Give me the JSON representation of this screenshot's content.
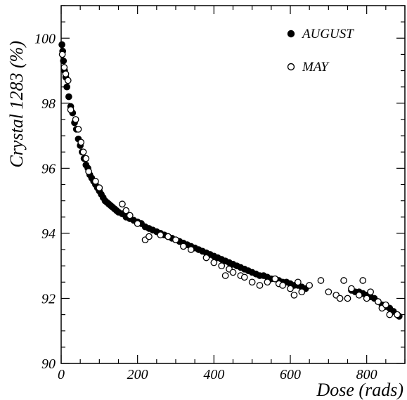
{
  "chart_data": {
    "type": "scatter",
    "title": "",
    "xlabel": "Dose (rads)",
    "ylabel": "Crystal 1283 (%)",
    "xlim": [
      0,
      900
    ],
    "ylim": [
      90,
      101
    ],
    "x_ticks": [
      0,
      200,
      400,
      600,
      800
    ],
    "y_ticks": [
      90,
      92,
      94,
      96,
      98,
      100
    ],
    "x_tick_labels": [
      "0",
      "200",
      "400",
      "600",
      "800"
    ],
    "y_tick_labels": [
      "90",
      "92",
      "94",
      "96",
      "98",
      "100"
    ],
    "grid": false,
    "legend_position": "top-right",
    "series": [
      {
        "name": "AUGUST",
        "marker": "filled-circle",
        "color": "#000000",
        "points": [
          [
            2,
            99.8
          ],
          [
            4,
            99.6
          ],
          [
            6,
            99.3
          ],
          [
            9,
            99.0
          ],
          [
            12,
            98.8
          ],
          [
            15,
            98.5
          ],
          [
            20,
            98.2
          ],
          [
            25,
            97.9
          ],
          [
            30,
            97.7
          ],
          [
            35,
            97.4
          ],
          [
            40,
            97.2
          ],
          [
            45,
            96.9
          ],
          [
            50,
            96.7
          ],
          [
            55,
            96.5
          ],
          [
            60,
            96.3
          ],
          [
            65,
            96.1
          ],
          [
            70,
            96.0
          ],
          [
            75,
            95.8
          ],
          [
            80,
            95.7
          ],
          [
            85,
            95.6
          ],
          [
            90,
            95.5
          ],
          [
            95,
            95.4
          ],
          [
            100,
            95.3
          ],
          [
            105,
            95.2
          ],
          [
            110,
            95.1
          ],
          [
            115,
            95.0
          ],
          [
            120,
            94.95
          ],
          [
            125,
            94.9
          ],
          [
            130,
            94.85
          ],
          [
            135,
            94.8
          ],
          [
            140,
            94.75
          ],
          [
            145,
            94.7
          ],
          [
            150,
            94.65
          ],
          [
            160,
            94.6
          ],
          [
            170,
            94.5
          ],
          [
            180,
            94.45
          ],
          [
            190,
            94.4
          ],
          [
            200,
            94.35
          ],
          [
            210,
            94.3
          ],
          [
            220,
            94.2
          ],
          [
            230,
            94.15
          ],
          [
            240,
            94.1
          ],
          [
            250,
            94.05
          ],
          [
            260,
            94.0
          ],
          [
            270,
            93.95
          ],
          [
            280,
            93.9
          ],
          [
            290,
            93.85
          ],
          [
            300,
            93.8
          ],
          [
            310,
            93.75
          ],
          [
            320,
            93.7
          ],
          [
            330,
            93.65
          ],
          [
            340,
            93.6
          ],
          [
            350,
            93.55
          ],
          [
            360,
            93.5
          ],
          [
            370,
            93.45
          ],
          [
            380,
            93.4
          ],
          [
            390,
            93.35
          ],
          [
            400,
            93.3
          ],
          [
            410,
            93.25
          ],
          [
            420,
            93.2
          ],
          [
            430,
            93.15
          ],
          [
            440,
            93.1
          ],
          [
            450,
            93.05
          ],
          [
            460,
            93.0
          ],
          [
            470,
            92.95
          ],
          [
            480,
            92.9
          ],
          [
            490,
            92.85
          ],
          [
            500,
            92.8
          ],
          [
            510,
            92.75
          ],
          [
            520,
            92.7
          ],
          [
            530,
            92.7
          ],
          [
            540,
            92.65
          ],
          [
            550,
            92.6
          ],
          [
            560,
            92.6
          ],
          [
            570,
            92.55
          ],
          [
            580,
            92.5
          ],
          [
            590,
            92.5
          ],
          [
            600,
            92.45
          ],
          [
            610,
            92.4
          ],
          [
            620,
            92.4
          ],
          [
            630,
            92.35
          ],
          [
            640,
            92.3
          ],
          [
            760,
            92.25
          ],
          [
            770,
            92.2
          ],
          [
            780,
            92.2
          ],
          [
            790,
            92.15
          ],
          [
            800,
            92.1
          ],
          [
            810,
            92.05
          ],
          [
            820,
            92.0
          ],
          [
            830,
            91.9
          ],
          [
            840,
            91.8
          ],
          [
            850,
            91.75
          ],
          [
            860,
            91.7
          ],
          [
            870,
            91.6
          ],
          [
            880,
            91.5
          ],
          [
            885,
            91.45
          ]
        ]
      },
      {
        "name": "MAY",
        "marker": "open-circle",
        "color": "#000000",
        "points": [
          [
            3,
            99.5
          ],
          [
            8,
            99.1
          ],
          [
            12,
            98.9
          ],
          [
            18,
            98.7
          ],
          [
            25,
            97.8
          ],
          [
            38,
            97.5
          ],
          [
            45,
            97.2
          ],
          [
            52,
            96.8
          ],
          [
            58,
            96.5
          ],
          [
            65,
            96.3
          ],
          [
            72,
            95.9
          ],
          [
            90,
            95.6
          ],
          [
            100,
            95.4
          ],
          [
            160,
            94.9
          ],
          [
            170,
            94.7
          ],
          [
            180,
            94.55
          ],
          [
            200,
            94.3
          ],
          [
            220,
            93.8
          ],
          [
            230,
            93.9
          ],
          [
            260,
            93.95
          ],
          [
            280,
            93.9
          ],
          [
            300,
            93.8
          ],
          [
            320,
            93.6
          ],
          [
            340,
            93.5
          ],
          [
            380,
            93.25
          ],
          [
            400,
            93.1
          ],
          [
            420,
            93.0
          ],
          [
            430,
            92.7
          ],
          [
            440,
            92.9
          ],
          [
            450,
            92.8
          ],
          [
            470,
            92.7
          ],
          [
            480,
            92.65
          ],
          [
            500,
            92.5
          ],
          [
            520,
            92.4
          ],
          [
            540,
            92.5
          ],
          [
            560,
            92.6
          ],
          [
            570,
            92.45
          ],
          [
            580,
            92.4
          ],
          [
            600,
            92.3
          ],
          [
            610,
            92.1
          ],
          [
            620,
            92.5
          ],
          [
            630,
            92.2
          ],
          [
            650,
            92.4
          ],
          [
            680,
            92.55
          ],
          [
            700,
            92.2
          ],
          [
            720,
            92.1
          ],
          [
            730,
            92.0
          ],
          [
            740,
            92.55
          ],
          [
            750,
            92.0
          ],
          [
            760,
            92.3
          ],
          [
            780,
            92.1
          ],
          [
            790,
            92.55
          ],
          [
            800,
            92.0
          ],
          [
            810,
            92.2
          ],
          [
            830,
            91.9
          ],
          [
            840,
            91.7
          ],
          [
            850,
            91.8
          ],
          [
            860,
            91.5
          ],
          [
            880,
            91.5
          ]
        ]
      }
    ]
  }
}
